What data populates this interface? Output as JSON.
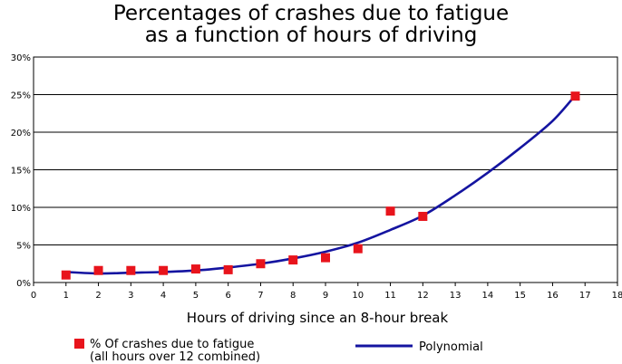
{
  "chart_data": {
    "type": "scatter",
    "title_lines": [
      "Percentages of crashes due to fatigue",
      "as a function of hours of driving"
    ],
    "xlabel": "Hours of driving since an 8-hour break",
    "ylabel": "",
    "xlim": [
      0,
      18
    ],
    "ylim": [
      0,
      30
    ],
    "x_ticks": [
      0,
      1,
      2,
      3,
      4,
      5,
      6,
      7,
      8,
      9,
      10,
      11,
      12,
      13,
      14,
      15,
      16,
      17,
      18
    ],
    "y_ticks": [
      0,
      5,
      10,
      15,
      20,
      25,
      30
    ],
    "y_tick_labels": [
      "0%",
      "5%",
      "10%",
      "15%",
      "20%",
      "25%",
      "30%"
    ],
    "grid": "horizontal",
    "legend_position": "bottom",
    "series": [
      {
        "name": "% Of crashes due to fatigue",
        "name_line2": "(all hours over 12 combined)",
        "kind": "scatter",
        "color": "#e8141c",
        "marker": "square",
        "x": [
          1,
          2,
          3,
          4,
          5,
          6,
          7,
          8,
          9,
          10,
          11,
          12,
          16.7
        ],
        "y": [
          1.0,
          1.6,
          1.6,
          1.6,
          1.8,
          1.7,
          2.5,
          3.0,
          3.3,
          4.5,
          9.5,
          8.8,
          24.8
        ]
      },
      {
        "name": "Polynomial",
        "kind": "line",
        "color": "#1414a0",
        "x": [
          1,
          2,
          3,
          4,
          5,
          6,
          7,
          8,
          9,
          10,
          11,
          12,
          13,
          14,
          15,
          16,
          16.7
        ],
        "y": [
          1.4,
          1.2,
          1.3,
          1.4,
          1.6,
          2.0,
          2.5,
          3.2,
          4.1,
          5.3,
          7.0,
          8.9,
          11.6,
          14.6,
          17.9,
          21.5,
          24.9
        ]
      }
    ]
  }
}
